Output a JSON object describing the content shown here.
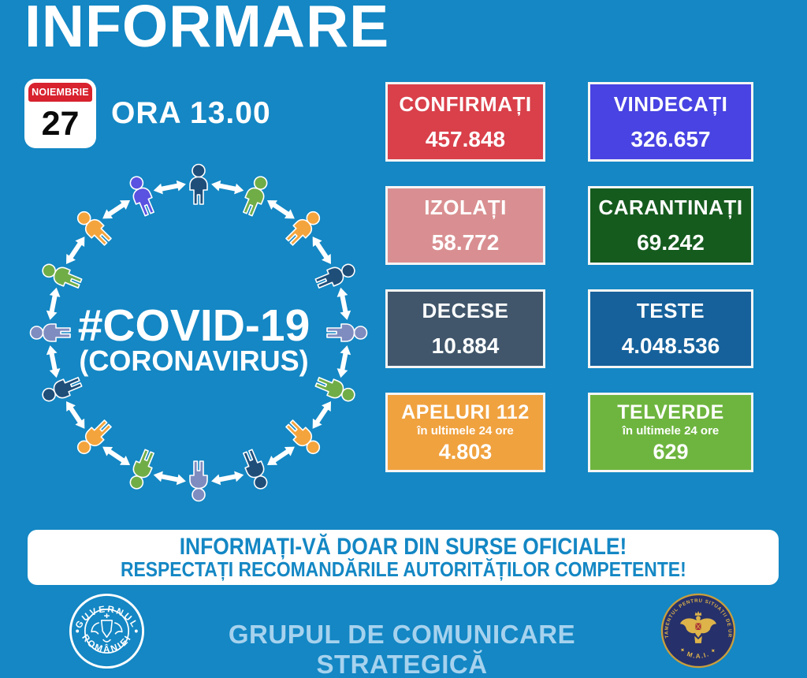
{
  "colors": {
    "background": "#1487C4",
    "banner_text": "#1487C4",
    "footer_label": "#A6D2EE",
    "box_border": "#F5F5F5",
    "calendar_red": "#D8222E"
  },
  "header": {
    "title": "INFORMARE",
    "time_label": "ORA 13.00",
    "calendar": {
      "month": "NOIEMBRIE",
      "day": "27"
    }
  },
  "circle": {
    "hashtag": "#COVID-19",
    "subtitle": "(CORONAVIRUS)",
    "arrow_color": "#FFFFFF",
    "people_colors": [
      "#1F4E79",
      "#70AD47",
      "#F4A43C",
      "#1F4E79",
      "#7F8CC0",
      "#70AD47",
      "#F4A43C",
      "#1F4E79",
      "#7F8CC0",
      "#70AD47",
      "#F4A43C",
      "#1F4E79",
      "#7F8CC0",
      "#70AD47",
      "#F4A43C",
      "#5A52E0"
    ]
  },
  "stats": [
    {
      "id": "confirmati",
      "label": "CONFIRMAȚI",
      "value": "457.848",
      "bg": "#D9404A"
    },
    {
      "id": "vindecati",
      "label": "VINDECAȚI",
      "value": "326.657",
      "bg": "#4843E2"
    },
    {
      "id": "izolati",
      "label": "IZOLAȚI",
      "value": "58.772",
      "bg": "#D98F91"
    },
    {
      "id": "carantinati",
      "label": "CARANTINAȚI",
      "value": "69.242",
      "bg": "#155B1E"
    },
    {
      "id": "decese",
      "label": "DECESE",
      "value": "10.884",
      "bg": "#41566B"
    },
    {
      "id": "teste",
      "label": "TESTE",
      "value": "4.048.536",
      "bg": "#16619B"
    },
    {
      "id": "apeluri-112",
      "label": "APELURI 112",
      "sublabel": "în ultimele 24 ore",
      "value": "4.803",
      "bg": "#F0A23F"
    },
    {
      "id": "telverde",
      "label": "TELVERDE",
      "sublabel": "în ultimele 24 ore",
      "value": "629",
      "bg": "#6EB53F"
    }
  ],
  "banner": {
    "line1": "INFORMAȚI-VĂ DOAR DIN SURSE OFICIALE!",
    "line2": "RESPECTAȚI RECOMANDĂRILE AUTORITĂȚILOR COMPETENTE!"
  },
  "footer": {
    "label": "GRUPUL DE COMUNICARE STRATEGICĂ",
    "gov_logo": {
      "top": "GUVERNUL",
      "bottom": "ROMÂNIEI"
    },
    "dsu_logo": {
      "arc": "DEPARTAMENTUL PENTRU SITUAȚII DE URGENȚĂ",
      "bottom": "✦  M.A.I.  ✦"
    }
  }
}
